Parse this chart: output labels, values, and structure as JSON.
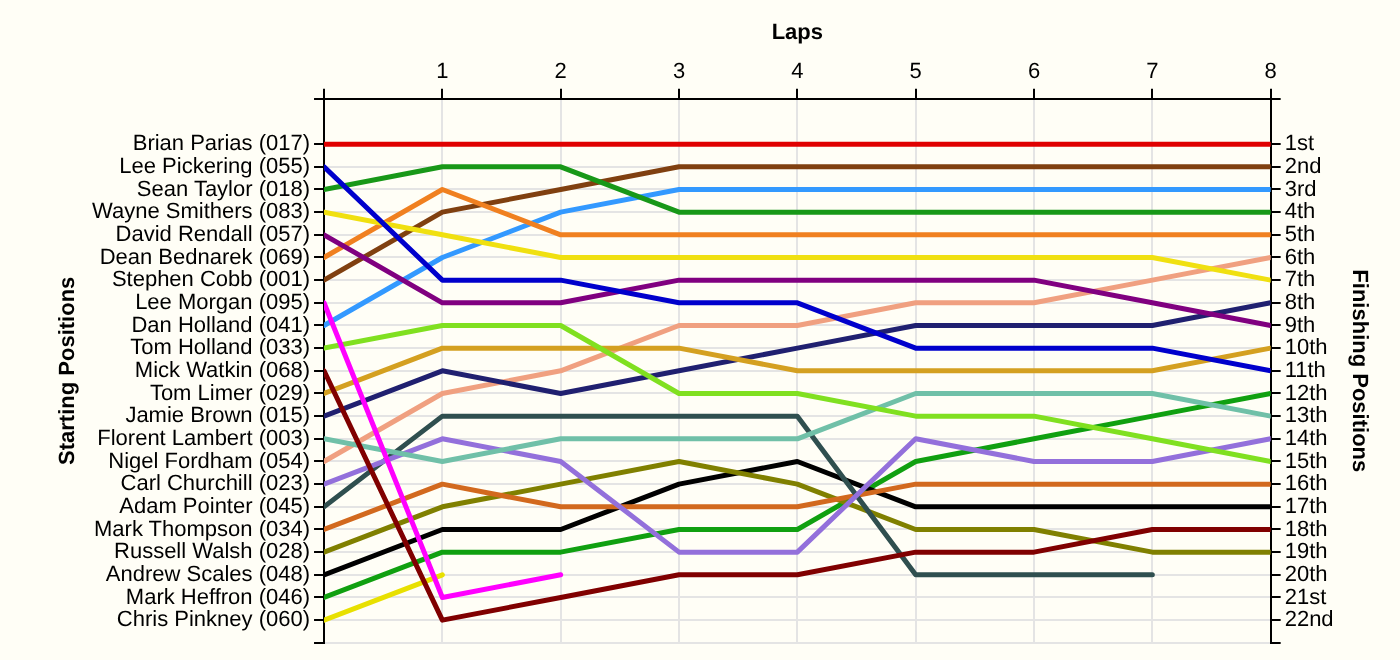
{
  "chart_data": {
    "type": "line",
    "xlabel": "Laps",
    "annotations": [
      "Starting Positions"
    ],
    "y2label": "Finishing Positions",
    "x": [
      0,
      1,
      2,
      3,
      4,
      5,
      6,
      7,
      8
    ],
    "xlim": [
      0,
      8
    ],
    "xticks": [
      {
        "value": 0,
        "label": null
      },
      1,
      2,
      3,
      4,
      5,
      6,
      7,
      8
    ],
    "y_categories": [
      "Brian Parias (017)",
      "Lee Pickering (055)",
      "Sean Taylor (018)",
      "Wayne Smithers (083)",
      "David Rendall (057)",
      "Dean Bednarek (069)",
      "Stephen Cobb (001)",
      "Lee Morgan (095)",
      "Dan Holland (041)",
      "Tom Holland (033)",
      "Mick Watkin (068)",
      "Tom Limer (029)",
      "Jamie Brown (015)",
      "Florent Lambert (003)",
      "Nigel Fordham (054)",
      "Carl Churchill (023)",
      "Adam Pointer (045)",
      "Mark Thompson (034)",
      "Russell Walsh (028)",
      "Andrew Scales (048)",
      "Mark Heffron (046)",
      "Chris Pinkney (060)"
    ],
    "y2lim": [
      23,
      -1
    ],
    "y2ticks": [
      {
        "value": 1,
        "label": "1st"
      },
      {
        "value": 2,
        "label": "2nd"
      },
      {
        "value": 3,
        "label": "3rd"
      },
      {
        "value": 4,
        "label": "4th"
      },
      {
        "value": 5,
        "label": "5th"
      },
      {
        "value": 6,
        "label": "6th"
      },
      {
        "value": 7,
        "label": "7th"
      },
      {
        "value": 8,
        "label": "8th"
      },
      {
        "value": 9,
        "label": "9th"
      },
      {
        "value": 10,
        "label": "10th"
      },
      {
        "value": 11,
        "label": "11th"
      },
      {
        "value": 12,
        "label": "12th"
      },
      {
        "value": 13,
        "label": "13th"
      },
      {
        "value": 14,
        "label": "14th"
      },
      {
        "value": 15,
        "label": "15th"
      },
      {
        "value": 16,
        "label": "16th"
      },
      {
        "value": 17,
        "label": "17th"
      },
      {
        "value": 18,
        "label": "18th"
      },
      {
        "value": 19,
        "label": "19th"
      },
      {
        "value": 20,
        "label": "20th"
      },
      {
        "value": 21,
        "label": "21st"
      },
      {
        "value": 22,
        "label": "22nd"
      },
      {
        "value": 23,
        "label": null
      },
      {
        "value": -1,
        "label": null
      }
    ],
    "grid": true,
    "legend": false,
    "marker": "none",
    "line_style": "solid",
    "series": [
      {
        "axis": "y2",
        "color": "#e00000",
        "values": [
          1,
          1,
          1,
          1,
          1,
          1,
          1,
          1,
          1
        ]
      },
      {
        "axis": "y2",
        "color": "#0000cc",
        "values": [
          2,
          7,
          7,
          8,
          8,
          10,
          10,
          10,
          11
        ]
      },
      {
        "axis": "y2",
        "color": "#189818",
        "values": [
          3,
          2,
          2,
          4,
          4,
          4,
          4,
          4,
          4
        ]
      },
      {
        "axis": "y2",
        "color": "#f0e010",
        "values": [
          4,
          5,
          6,
          6,
          6,
          6,
          6,
          6,
          7
        ]
      },
      {
        "axis": "y2",
        "color": "#800080",
        "values": [
          5,
          8,
          8,
          7,
          7,
          7,
          7,
          8,
          9
        ]
      },
      {
        "axis": "y2",
        "color": "#f08020",
        "values": [
          6,
          3,
          5,
          5,
          5,
          5,
          5,
          5,
          5
        ]
      },
      {
        "axis": "y2",
        "color": "#804010",
        "values": [
          7,
          4,
          3,
          2,
          2,
          2,
          2,
          2,
          2
        ]
      },
      {
        "axis": "y2",
        "color": "#ff00ff",
        "values": [
          8,
          21,
          20,
          null,
          null,
          null,
          null,
          null,
          null
        ]
      },
      {
        "axis": "y2",
        "color": "#3399ff",
        "values": [
          9,
          6,
          4,
          3,
          3,
          3,
          3,
          3,
          3
        ]
      },
      {
        "axis": "y2",
        "color": "#80e020",
        "values": [
          10,
          9,
          9,
          12,
          12,
          13,
          13,
          14,
          15
        ]
      },
      {
        "axis": "y2",
        "color": "#800000",
        "values": [
          11,
          22,
          21,
          20,
          20,
          19,
          19,
          18,
          18
        ]
      },
      {
        "axis": "y2",
        "color": "#d4a020",
        "values": [
          12,
          10,
          10,
          10,
          11,
          11,
          11,
          11,
          10
        ]
      },
      {
        "axis": "y2",
        "color": "#202070",
        "values": [
          13,
          11,
          12,
          11,
          10,
          9,
          9,
          9,
          8
        ]
      },
      {
        "axis": "y2",
        "color": "#70c0a8",
        "values": [
          14,
          15,
          14,
          14,
          14,
          12,
          12,
          12,
          13
        ]
      },
      {
        "axis": "y2",
        "color": "#f0a080",
        "values": [
          15,
          12,
          11,
          9,
          9,
          8,
          8,
          7,
          6
        ]
      },
      {
        "axis": "y2",
        "color": "#9370db",
        "values": [
          16,
          14,
          15,
          19,
          19,
          14,
          15,
          15,
          14
        ]
      },
      {
        "axis": "y2",
        "color": "#2f4f4f",
        "values": [
          17,
          13,
          13,
          13,
          13,
          20,
          20,
          20,
          null
        ]
      },
      {
        "axis": "y2",
        "color": "#d2691e",
        "values": [
          18,
          16,
          17,
          17,
          17,
          16,
          16,
          16,
          16
        ]
      },
      {
        "axis": "y2",
        "color": "#808000",
        "values": [
          19,
          17,
          16,
          15,
          16,
          18,
          18,
          19,
          19
        ]
      },
      {
        "axis": "y2",
        "color": "#000000",
        "values": [
          20,
          18,
          18,
          16,
          15,
          17,
          17,
          17,
          17
        ]
      },
      {
        "axis": "y2",
        "color": "#10a010",
        "values": [
          21,
          19,
          19,
          18,
          18,
          15,
          14,
          13,
          12
        ]
      },
      {
        "axis": "y2",
        "color": "#e8e000",
        "values": [
          22,
          20,
          null,
          null,
          null,
          null,
          null,
          null,
          null
        ]
      }
    ]
  }
}
